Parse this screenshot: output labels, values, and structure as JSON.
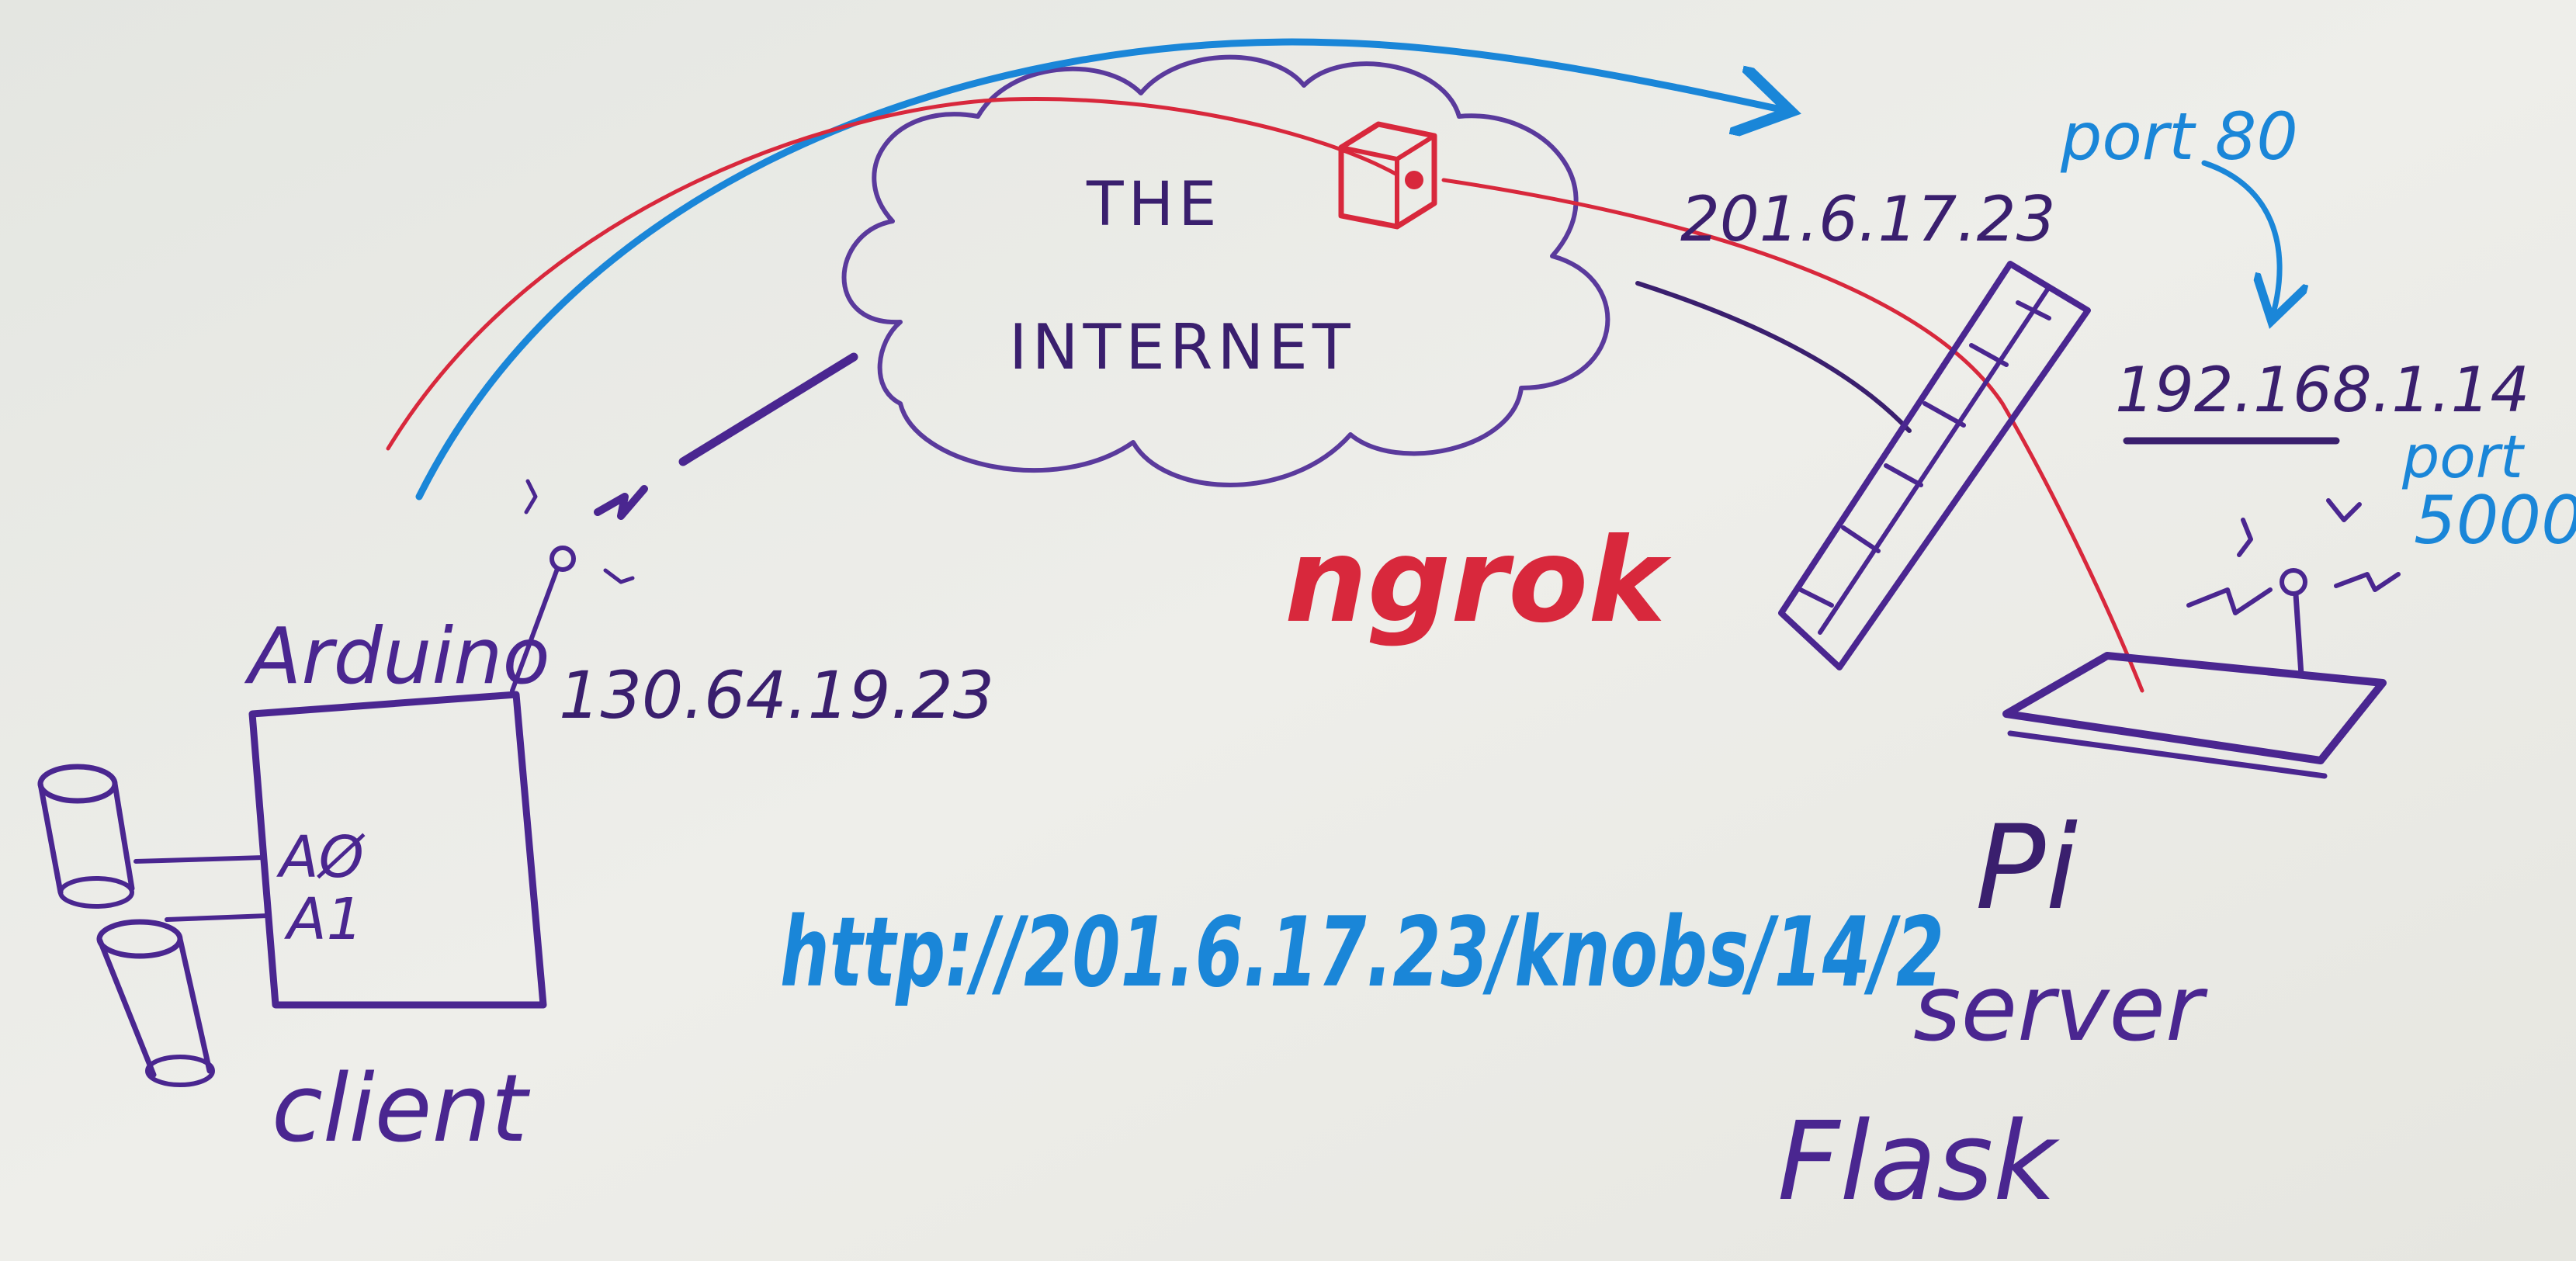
{
  "colors": {
    "board": "#e9eae5",
    "purple": "#4a2690",
    "blue": "#1a86d8",
    "red": "#d8283c"
  },
  "labels": {
    "internet_line1": "THE",
    "internet_line2": "INTERNET",
    "service": "ngrok",
    "client_board": "Arduino",
    "client_ip": "130.64.19.23",
    "pin_a0": "AØ",
    "pin_a1": "A1",
    "client_role": "client",
    "public_ip": "201.6.17.23",
    "public_port": "port 80",
    "local_ip": "192.168.1.14",
    "local_port_word": "port",
    "local_port_number": "5000",
    "url": "http://201.6.17.23/knobs/14/2",
    "server_device": "Pi",
    "server_role": "server",
    "server_framework": "Flask"
  },
  "icons": {
    "knob_left_top": "potentiometer-icon",
    "knob_left_bottom": "potentiometer-icon",
    "client_antenna": "antenna-icon",
    "server_antenna": "antenna-icon",
    "firewall": "firewall-icon",
    "tunnel": "box-icon"
  }
}
